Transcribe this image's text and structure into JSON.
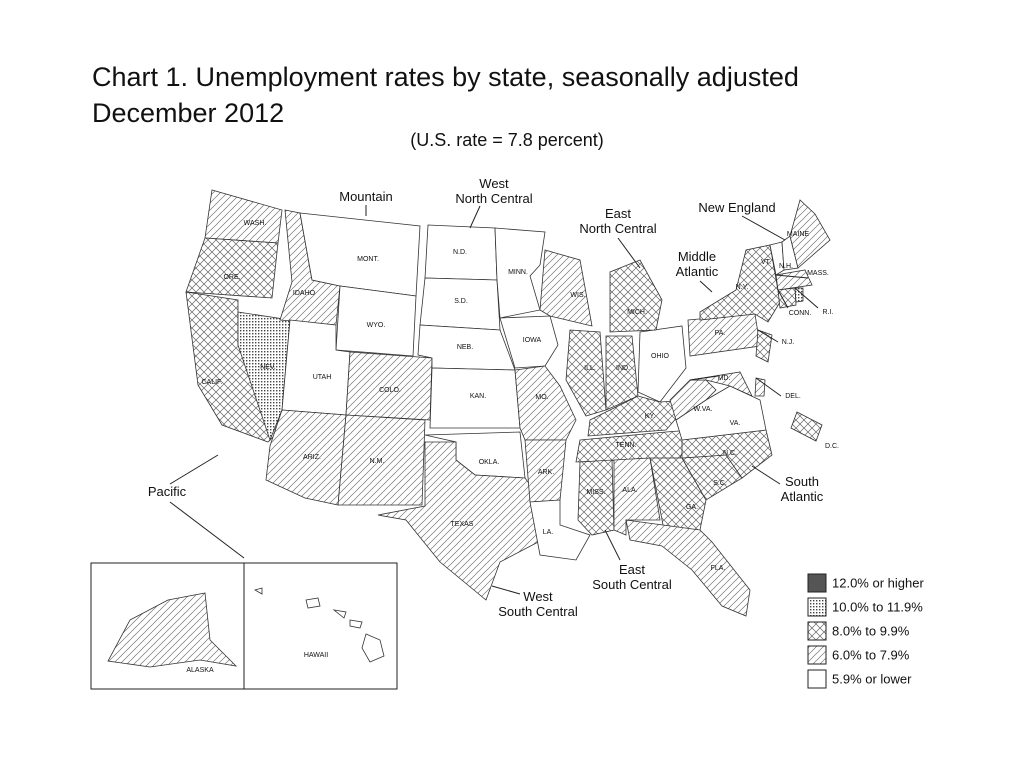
{
  "title": "Chart 1. Unemployment rates by state, seasonally adjusted",
  "date": "December 2012",
  "subtitle": "(U.S. rate = 7.8 percent)",
  "regions": [
    {
      "lines": [
        "Pacific"
      ]
    },
    {
      "lines": [
        "Mountain"
      ]
    },
    {
      "lines": [
        "West",
        "North Central"
      ]
    },
    {
      "lines": [
        "East",
        "North Central"
      ]
    },
    {
      "lines": [
        "Middle",
        "Atlantic"
      ]
    },
    {
      "lines": [
        "New England"
      ]
    },
    {
      "lines": [
        "South",
        "Atlantic"
      ]
    },
    {
      "lines": [
        "East",
        "South Central"
      ]
    },
    {
      "lines": [
        "West",
        "South Central"
      ]
    }
  ],
  "states": [
    "WASH.",
    "ORE.",
    "CALIF.",
    "NEV.",
    "IDAHO",
    "MONT.",
    "WYO.",
    "UTAH",
    "COLO.",
    "ARIZ.",
    "N.M.",
    "N.D.",
    "S.D.",
    "NEB.",
    "KAN.",
    "OKLA.",
    "TEXAS",
    "MINN.",
    "IOWA",
    "MO.",
    "ARK.",
    "LA.",
    "WIS.",
    "ILL.",
    "IND.",
    "OHIO",
    "MICH.",
    "KY.",
    "TENN.",
    "MISS.",
    "ALA.",
    "GA.",
    "FLA.",
    "S.C.",
    "N.C.",
    "VA.",
    "W.VA.",
    "PA.",
    "N.Y.",
    "N.J.",
    "MD.",
    "DEL.",
    "D.C.",
    "VT.",
    "N.H.",
    "MAINE",
    "MASS.",
    "CONN.",
    "R.I.",
    "ALASKA",
    "HAWAII"
  ],
  "legend": [
    {
      "label": "12.0% or higher",
      "pattern": "solid",
      "states": []
    },
    {
      "label": "10.0% to 11.9%",
      "pattern": "dots",
      "states": [
        "NEV.",
        "R.I."
      ]
    },
    {
      "label": "8.0% to 9.9%",
      "pattern": "cross",
      "states": [
        "ORE.",
        "CALIF.",
        "ILL.",
        "IND.",
        "MICH.",
        "N.Y.",
        "N.J.",
        "CONN.",
        "MISS.",
        "N.C.",
        "S.C.",
        "GA.",
        "KY.",
        "TENN.",
        "D.C."
      ]
    },
    {
      "label": "6.0% to 7.9%",
      "pattern": "diag",
      "states": [
        "WASH.",
        "IDAHO",
        "COLO.",
        "ARIZ.",
        "N.M.",
        "TEXAS",
        "MO.",
        "ARK.",
        "WIS.",
        "ALA.",
        "FLA.",
        "W.VA.",
        "PA.",
        "MD.",
        "DEL.",
        "MAINE",
        "MASS.",
        "ALASKA"
      ]
    },
    {
      "label": "5.9% or lower",
      "pattern": "none",
      "states": [
        "MONT.",
        "WYO.",
        "UTAH",
        "N.D.",
        "S.D.",
        "NEB.",
        "KAN.",
        "OKLA.",
        "MINN.",
        "IOWA",
        "LA.",
        "OHIO",
        "VA.",
        "VT.",
        "N.H.",
        "HAWAII"
      ]
    }
  ]
}
